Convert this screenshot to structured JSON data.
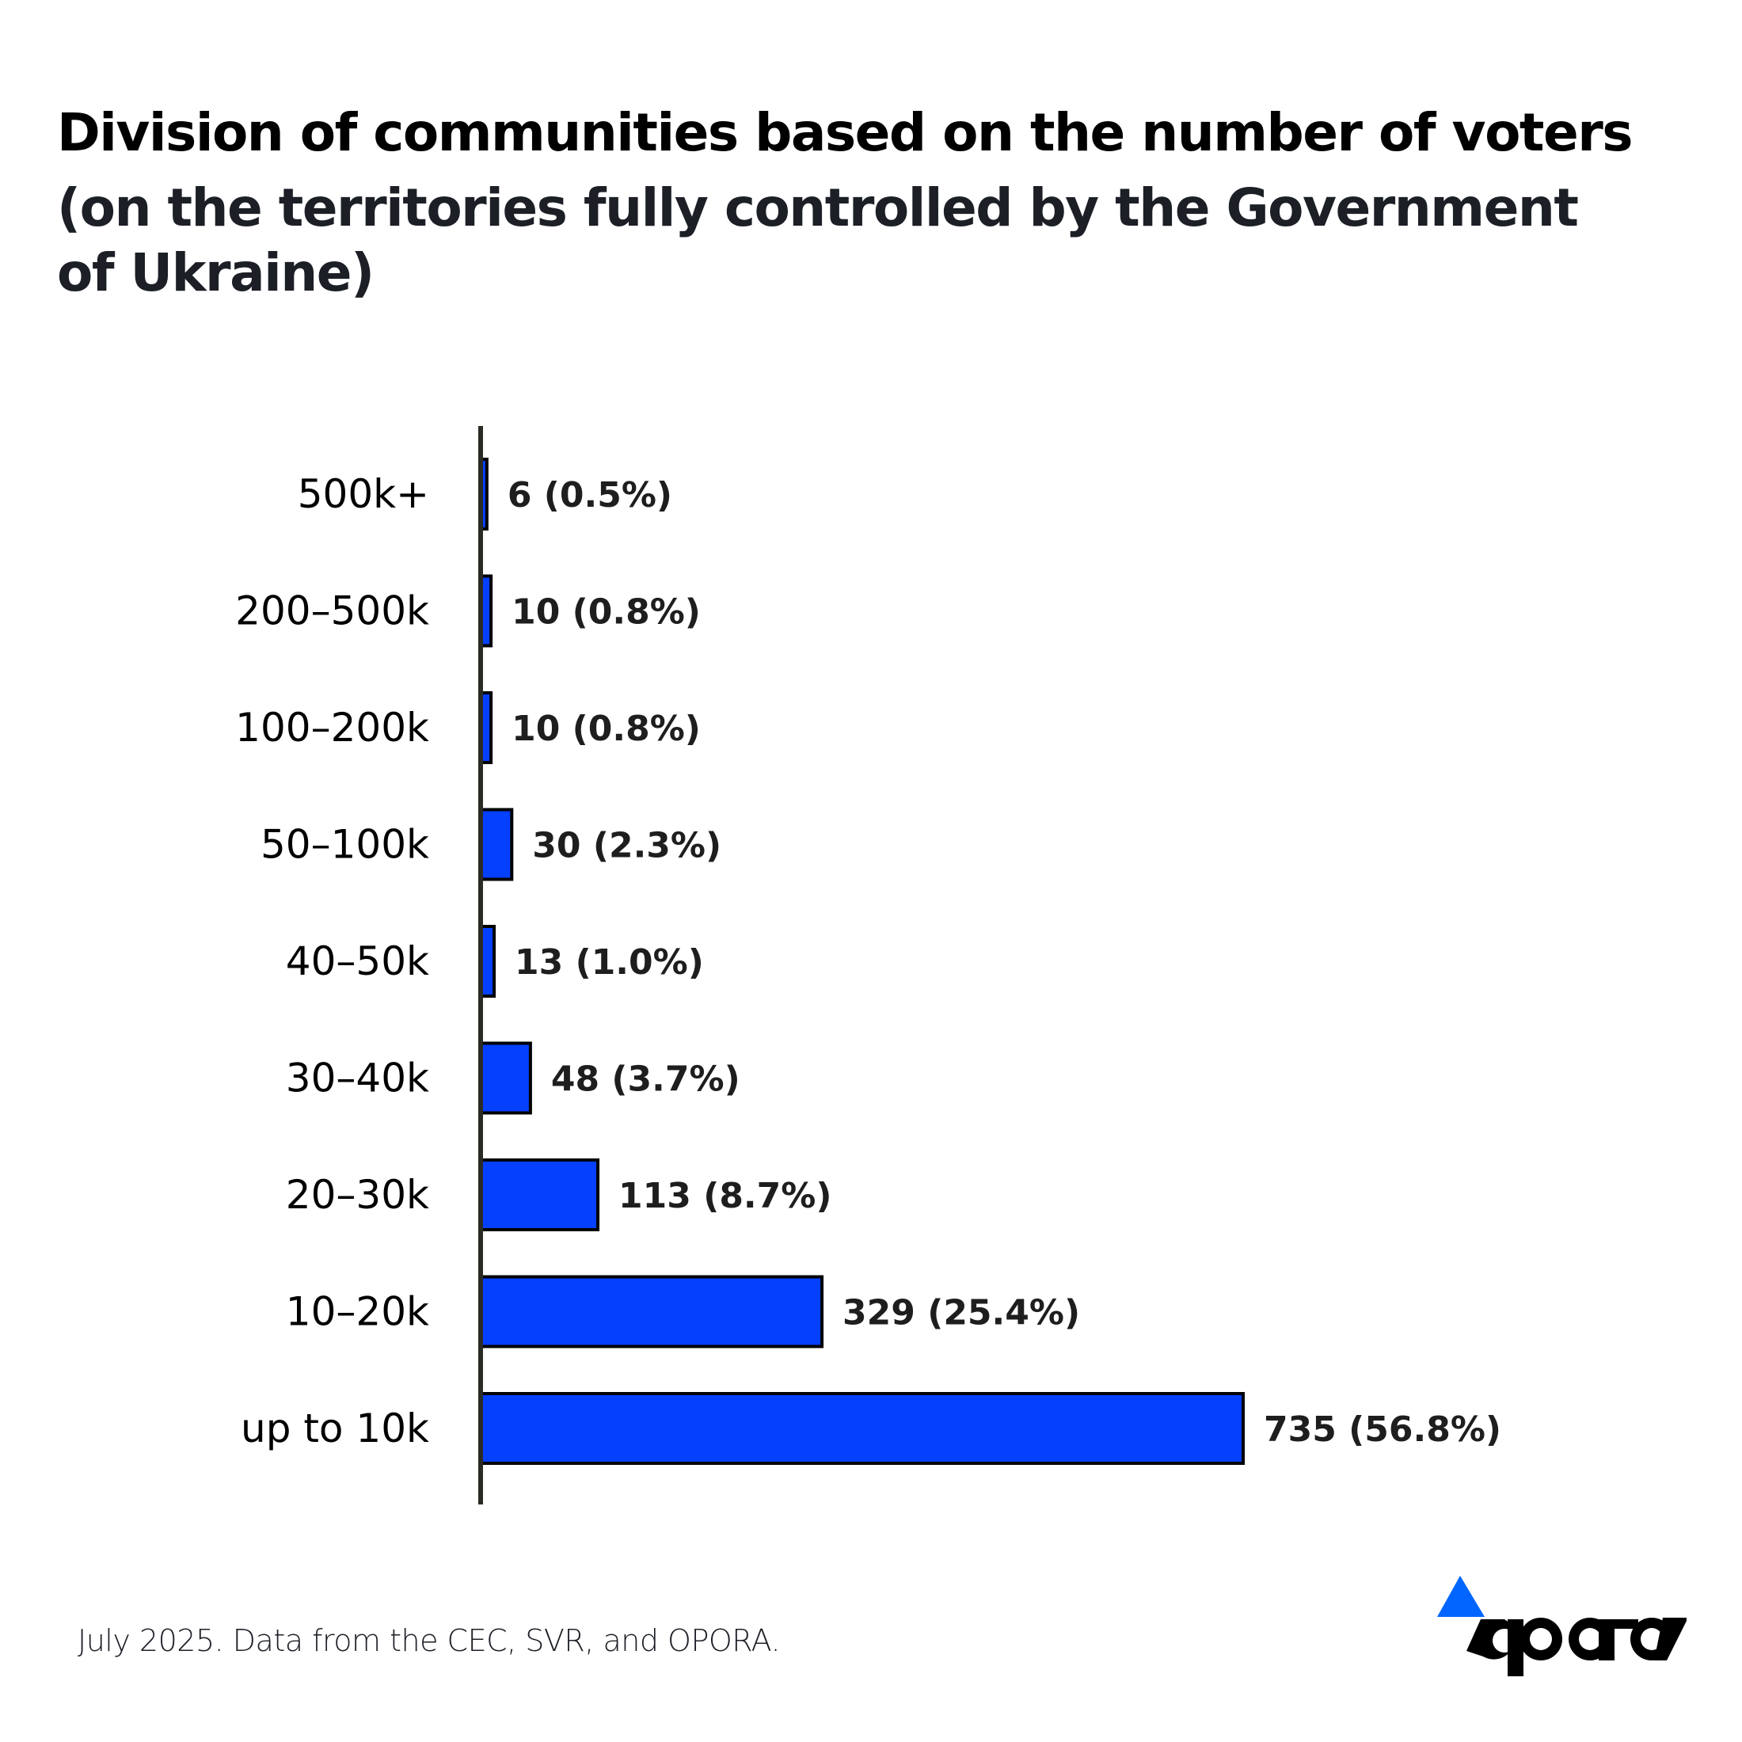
{
  "header": {
    "title": "Division of communities based on the number of voters",
    "subtitle": "(on the territories fully controlled by the Government of Ukraine)"
  },
  "chart_data": {
    "type": "bar",
    "orientation": "horizontal",
    "title": "Division of communities based on the number of voters",
    "subtitle": "(on the territories fully controlled by the Government of Ukraine)",
    "xlabel": "",
    "ylabel": "",
    "categories": [
      "500k+",
      "200–500k",
      "100–200k",
      "50–100k",
      "40–50k",
      "30–40k",
      "20–30k",
      "10–20k",
      "up to 10k"
    ],
    "values": [
      6,
      10,
      10,
      30,
      13,
      48,
      113,
      329,
      735
    ],
    "value_labels": [
      "6 (0.5%)",
      "10 (0.8%)",
      "10 (0.8%)",
      "30 (2.3%)",
      "13 (1.0%)",
      "48 (3.7%)",
      "113 (8.7%)",
      "329 (25.4%)",
      "735 (56.8%)"
    ],
    "percentages": [
      0.5,
      0.8,
      0.8,
      2.3,
      1.0,
      3.7,
      8.7,
      25.4,
      56.8
    ],
    "xlim": [
      0,
      735
    ],
    "grid": false,
    "legend": "none",
    "bar_color": "#0540ff",
    "bar_outline": "#000000",
    "axis_color": "#2a2b24"
  },
  "footer": {
    "source": "July 2025. Data from the CEC, SVR, and OPORA."
  },
  "logo": {
    "text": "opora",
    "accent_color": "#0066ff"
  }
}
